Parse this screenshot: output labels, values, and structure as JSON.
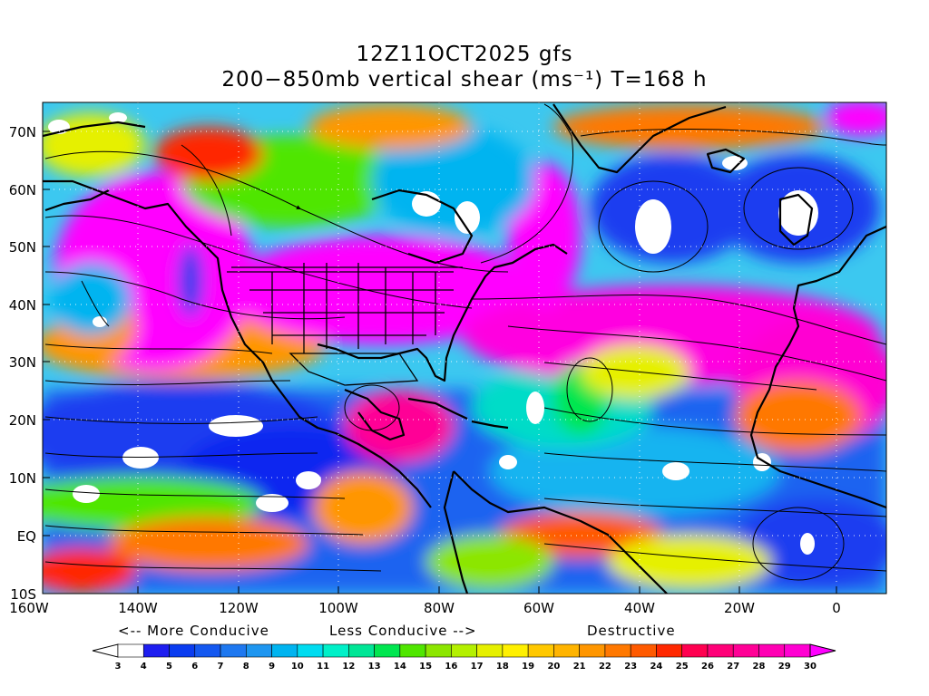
{
  "title": {
    "line1": "12Z11OCT2025 gfs",
    "line2": "200−850mb vertical shear (ms⁻¹) T=168 h"
  },
  "lat_labels": [
    "70N",
    "60N",
    "50N",
    "40N",
    "30N",
    "20N",
    "10N",
    "EQ",
    "10S"
  ],
  "lon_labels": [
    "160W",
    "140W",
    "120W",
    "100W",
    "80W",
    "60W",
    "40W",
    "20W",
    "0"
  ],
  "conducive_labels": {
    "more": "<--  More Conducive",
    "less": "Less Conducive  -->",
    "destructive": "Destructive"
  },
  "colorbar": {
    "levels": [
      "3",
      "4",
      "5",
      "6",
      "7",
      "8",
      "9",
      "10",
      "11",
      "12",
      "13",
      "14",
      "15",
      "16",
      "17",
      "18",
      "19",
      "20",
      "21",
      "22",
      "23",
      "24",
      "25",
      "26",
      "27",
      "28",
      "29",
      "30"
    ],
    "colors": [
      "#ffffff",
      "#1e1ef0",
      "#0a3cf0",
      "#1458f0",
      "#1e78f0",
      "#1e96f0",
      "#00b4f0",
      "#00dcf0",
      "#00f0c8",
      "#00e696",
      "#00e650",
      "#50e600",
      "#8ce600",
      "#b4f000",
      "#e6f000",
      "#fff000",
      "#ffc800",
      "#ffb400",
      "#ff9600",
      "#ff7800",
      "#ff5a00",
      "#ff2800",
      "#ff0050",
      "#ff0078",
      "#ff0096",
      "#ff00b4",
      "#ff00d2",
      "#ff00ff"
    ],
    "under_color": "#ffffff",
    "over_color": "#ff00ff"
  }
}
